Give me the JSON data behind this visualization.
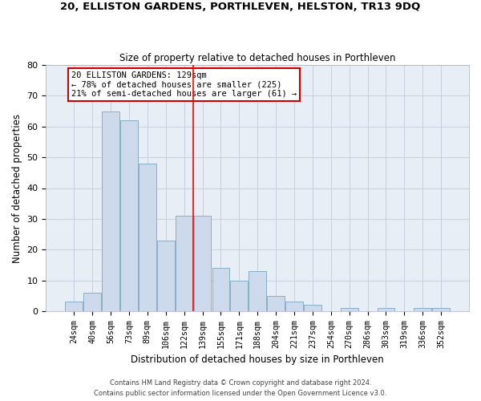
{
  "title1": "20, ELLISTON GARDENS, PORTHLEVEN, HELSTON, TR13 9DQ",
  "title2": "Size of property relative to detached houses in Porthleven",
  "xlabel": "Distribution of detached houses by size in Porthleven",
  "ylabel": "Number of detached properties",
  "categories": [
    "24sqm",
    "40sqm",
    "56sqm",
    "73sqm",
    "89sqm",
    "106sqm",
    "122sqm",
    "139sqm",
    "155sqm",
    "171sqm",
    "188sqm",
    "204sqm",
    "221sqm",
    "237sqm",
    "254sqm",
    "270sqm",
    "286sqm",
    "303sqm",
    "319sqm",
    "336sqm",
    "352sqm"
  ],
  "values": [
    3,
    6,
    65,
    62,
    48,
    23,
    31,
    31,
    14,
    10,
    13,
    5,
    3,
    2,
    0,
    1,
    0,
    1,
    0,
    1,
    1
  ],
  "bar_color": "#ccdaeb",
  "bar_edgecolor": "#8aaec8",
  "grid_color": "#c8d0de",
  "background_color": "#e8eef6",
  "red_line_x": 6.5,
  "annotation_text": "20 ELLISTON GARDENS: 129sqm\n← 78% of detached houses are smaller (225)\n21% of semi-detached houses are larger (61) →",
  "annotation_box_color": "white",
  "annotation_box_edgecolor": "#cc0000",
  "ylim": [
    0,
    80
  ],
  "yticks": [
    0,
    10,
    20,
    30,
    40,
    50,
    60,
    70,
    80
  ],
  "footer1": "Contains HM Land Registry data © Crown copyright and database right 2024.",
  "footer2": "Contains public sector information licensed under the Open Government Licence v3.0."
}
